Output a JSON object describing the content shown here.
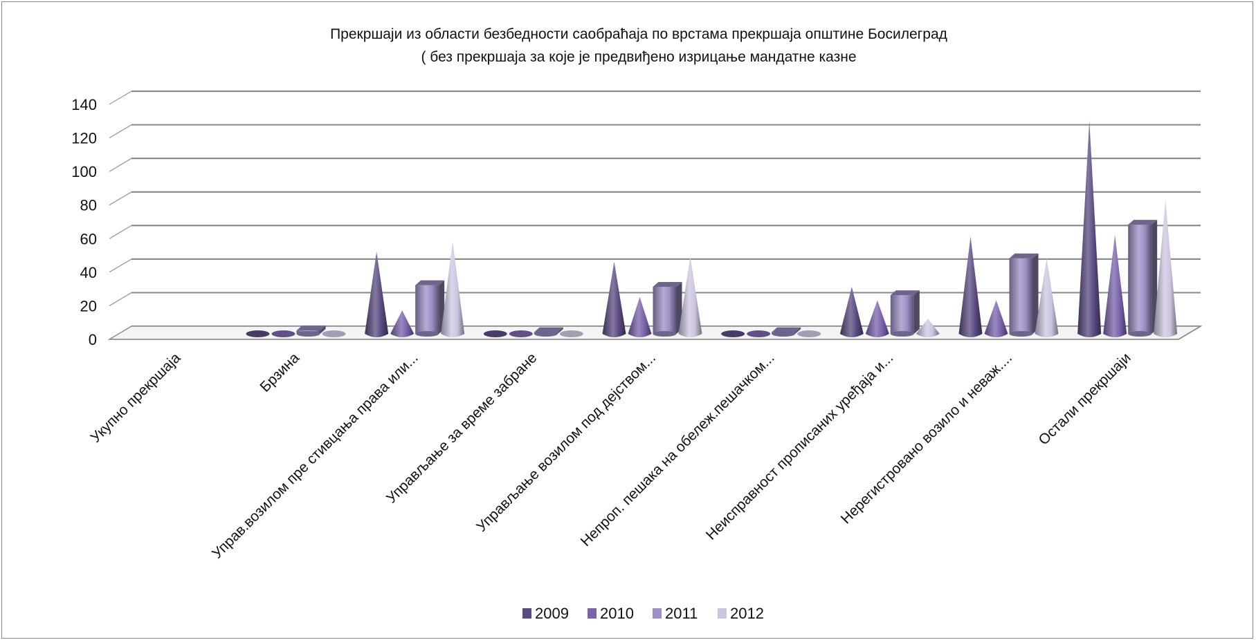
{
  "chart_data": {
    "type": "bar",
    "style": "3d-cone-and-cylinder",
    "title": "Прекршаји из области безбедности саобраћаја по врстама прекршаја општине Босилеград",
    "subtitle": "( без прекршаја за које је предвиђено изрицање мандатне казне",
    "xlabel": "",
    "ylabel": "",
    "ylim": [
      0,
      140
    ],
    "yticks": [
      0,
      20,
      40,
      60,
      80,
      100,
      120,
      140
    ],
    "grid": true,
    "legend_position": "bottom",
    "categories": [
      "Укупно прекршаја",
      "Брзина",
      "Управ.возилом пре стивцања права или...",
      "Управљање за време забране",
      "Управљање возилом под дејством...",
      "Непроп. пешака на обележ.пешачком...",
      "Неисправност прописаних уређаја и...",
      "Нерегистровано возило и неваж....",
      "Остали прекршаји"
    ],
    "series": [
      {
        "name": "2009",
        "shape": "cone",
        "color": "#5a4a80",
        "values": [
          null,
          0,
          49,
          0,
          43,
          0,
          28,
          58,
          127
        ]
      },
      {
        "name": "2010",
        "shape": "cone",
        "color": "#7a63ab",
        "values": [
          null,
          0,
          14,
          0,
          22,
          0,
          20,
          20,
          59
        ]
      },
      {
        "name": "2011",
        "shape": "cylinder",
        "color": "#9f8fc6",
        "values": [
          null,
          2,
          29,
          1,
          28,
          1,
          23,
          45,
          65
        ]
      },
      {
        "name": "2012",
        "shape": "cone",
        "color": "#cdc5e0",
        "values": [
          null,
          0,
          55,
          0,
          46,
          0,
          9,
          45,
          80
        ]
      }
    ]
  }
}
